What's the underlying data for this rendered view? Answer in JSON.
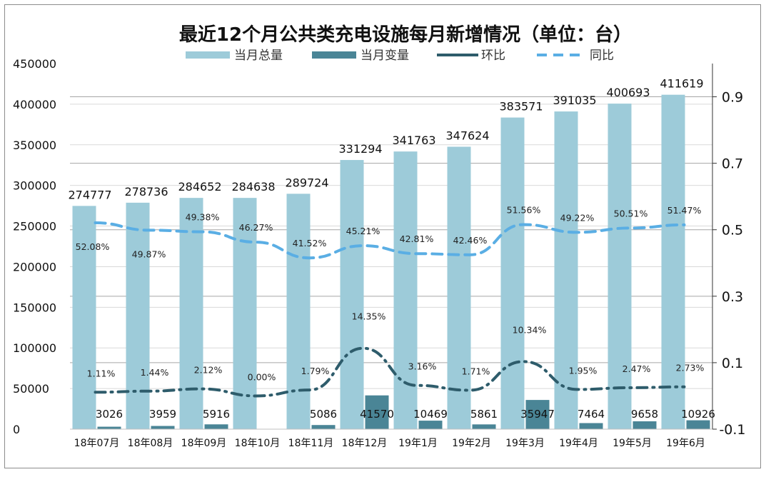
{
  "chart_data": {
    "type": "bar",
    "title": "最近12个月公共类充电设施每月新增情况（单位：台）",
    "categories": [
      "18年07月",
      "18年08月",
      "18年09月",
      "18年10月",
      "18年11月",
      "18年12月",
      "19年1月",
      "19年2月",
      "19年3月",
      "19年4月",
      "19年5月",
      "19年6月"
    ],
    "series": [
      {
        "name": "当月总量",
        "type": "bar",
        "axis": "left",
        "color": "#9dcbd9",
        "values": [
          274777,
          278736,
          284652,
          284638,
          289724,
          331294,
          341763,
          347624,
          383571,
          391035,
          400693,
          411619
        ],
        "labels": [
          "274777",
          "278736",
          "284652",
          "284638",
          "289724",
          "331294",
          "341763",
          "347624",
          "383571",
          "391035",
          "400693",
          "411619"
        ]
      },
      {
        "name": "当月变量",
        "type": "bar",
        "axis": "left",
        "color": "#4a8596",
        "values": [
          3026,
          3959,
          5916,
          0,
          5086,
          41570,
          10469,
          5861,
          35947,
          7464,
          9658,
          10926
        ],
        "labels": [
          "3026",
          "3959",
          "5916",
          "",
          "5086",
          "41570",
          "10469",
          "5861",
          "35947",
          "7464",
          "9658",
          "10926"
        ]
      },
      {
        "name": "环比",
        "type": "line",
        "axis": "right",
        "style": "dash-dot",
        "color": "#2e5c6b",
        "values": [
          0.0111,
          0.0144,
          0.0212,
          0.0,
          0.0179,
          0.1435,
          0.0316,
          0.0171,
          0.1034,
          0.0195,
          0.0247,
          0.0273
        ],
        "labels": [
          "1.11%",
          "1.44%",
          "2.12%",
          "0.00%",
          "1.79%",
          "14.35%",
          "3.16%",
          "1.71%",
          "10.34%",
          "1.95%",
          "2.47%",
          "2.73%"
        ]
      },
      {
        "name": "同比",
        "type": "line",
        "axis": "right",
        "style": "dash",
        "color": "#5aaee4",
        "values": [
          0.5208,
          0.4987,
          0.4938,
          0.4627,
          0.4152,
          0.4521,
          0.4281,
          0.4246,
          0.5156,
          0.4922,
          0.5051,
          0.5147
        ],
        "labels": [
          "52.08%",
          "49.87%",
          "49.38%",
          "46.27%",
          "41.52%",
          "45.21%",
          "42.81%",
          "42.46%",
          "51.56%",
          "49.22%",
          "50.51%",
          "51.47%"
        ]
      }
    ],
    "y_left": {
      "min": 0,
      "max": 450000,
      "ticks": [
        "0",
        "50000",
        "100000",
        "150000",
        "200000",
        "250000",
        "300000",
        "350000",
        "400000",
        "450000"
      ]
    },
    "y_right": {
      "min": -0.1,
      "max": 1.0,
      "ticks": [
        "-0.1",
        "0.1",
        "0.3",
        "0.5",
        "0.7",
        "0.9"
      ]
    },
    "grid": true,
    "legend_position": "top"
  }
}
